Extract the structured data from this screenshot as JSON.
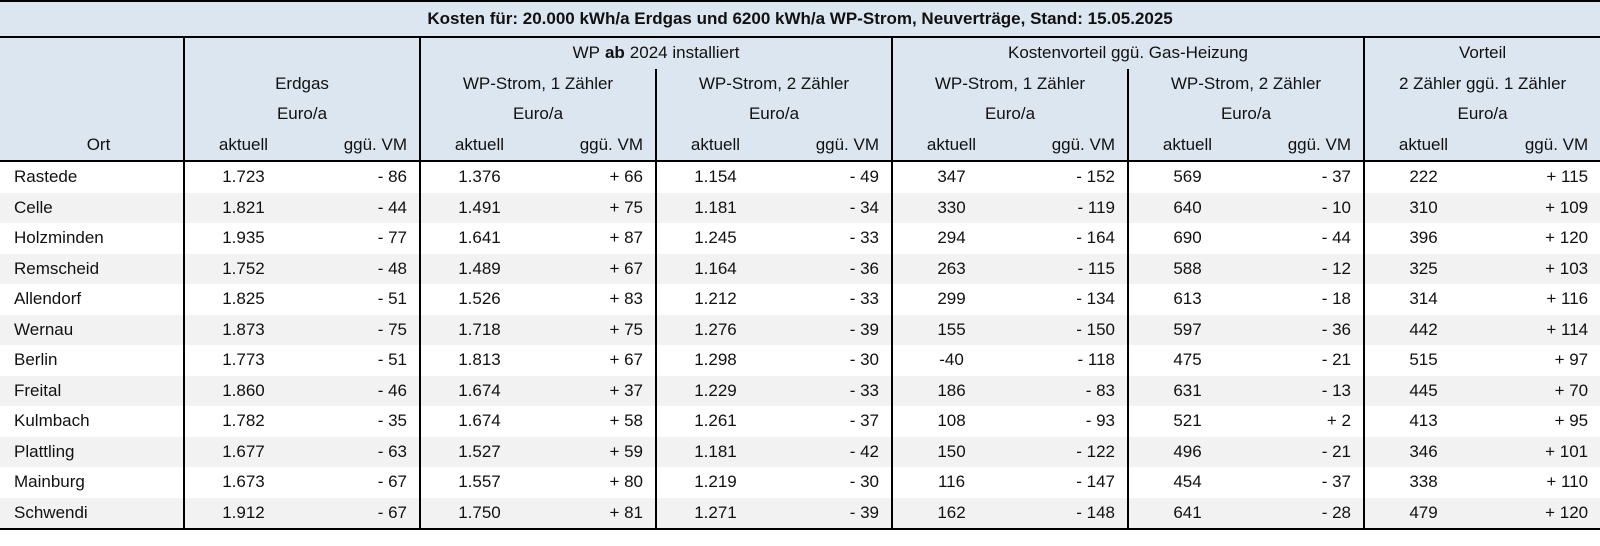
{
  "title": "Kosten für: 20.000 kWh/a Erdgas und 6200 kWh/a WP-Strom, Neuverträge, Stand: 15.05.2025",
  "header": {
    "wp_group": [
      "WP",
      "ab",
      "2024 installiert"
    ],
    "kv_group": "Kostenvorteil ggü. Gas-Heizung",
    "vorteil_group": "Vorteil",
    "subgroups": [
      "Erdgas",
      "WP-Strom, 1 Zähler",
      "WP-Strom, 2 Zähler",
      "WP-Strom, 1 Zähler",
      "WP-Strom, 2 Zähler",
      "2 Zähler ggü. 1 Zähler"
    ],
    "units": [
      "Euro/a",
      "Euro/a",
      "Euro/a",
      "Euro/a",
      "Euro/a",
      "Euro/a"
    ],
    "ort": "Ort",
    "columns": [
      "aktuell",
      "ggü. VM",
      "aktuell",
      "ggü. VM",
      "aktuell",
      "ggü. VM",
      "aktuell",
      "ggü. VM",
      "aktuell",
      "ggü. VM",
      "aktuell",
      "ggü. VM"
    ]
  },
  "rows": [
    {
      "ort": "Rastede",
      "values": [
        "1.723",
        "- 86",
        "1.376",
        "+ 66",
        "1.154",
        "- 49",
        "347",
        "- 152",
        "569",
        "- 37",
        "222",
        "+ 115"
      ]
    },
    {
      "ort": "Celle",
      "values": [
        "1.821",
        "- 44",
        "1.491",
        "+ 75",
        "1.181",
        "- 34",
        "330",
        "- 119",
        "640",
        "- 10",
        "310",
        "+ 109"
      ]
    },
    {
      "ort": "Holzminden",
      "values": [
        "1.935",
        "- 77",
        "1.641",
        "+ 87",
        "1.245",
        "- 33",
        "294",
        "- 164",
        "690",
        "- 44",
        "396",
        "+ 120"
      ]
    },
    {
      "ort": "Remscheid",
      "values": [
        "1.752",
        "- 48",
        "1.489",
        "+ 67",
        "1.164",
        "- 36",
        "263",
        "- 115",
        "588",
        "- 12",
        "325",
        "+ 103"
      ]
    },
    {
      "ort": "Allendorf",
      "values": [
        "1.825",
        "- 51",
        "1.526",
        "+ 83",
        "1.212",
        "- 33",
        "299",
        "- 134",
        "613",
        "- 18",
        "314",
        "+ 116"
      ]
    },
    {
      "ort": "Wernau",
      "values": [
        "1.873",
        "- 75",
        "1.718",
        "+ 75",
        "1.276",
        "- 39",
        "155",
        "- 150",
        "597",
        "- 36",
        "442",
        "+ 114"
      ]
    },
    {
      "ort": "Berlin",
      "values": [
        "1.773",
        "- 51",
        "1.813",
        "+ 67",
        "1.298",
        "- 30",
        "-40",
        "- 118",
        "475",
        "- 21",
        "515",
        "+ 97"
      ]
    },
    {
      "ort": "Freital",
      "values": [
        "1.860",
        "- 46",
        "1.674",
        "+ 37",
        "1.229",
        "- 33",
        "186",
        "- 83",
        "631",
        "- 13",
        "445",
        "+ 70"
      ]
    },
    {
      "ort": "Kulmbach",
      "values": [
        "1.782",
        "- 35",
        "1.674",
        "+ 58",
        "1.261",
        "- 37",
        "108",
        "- 93",
        "521",
        "+ 2",
        "413",
        "+ 95"
      ]
    },
    {
      "ort": "Plattling",
      "values": [
        "1.677",
        "- 63",
        "1.527",
        "+ 59",
        "1.181",
        "- 42",
        "150",
        "- 122",
        "496",
        "- 21",
        "346",
        "+ 101"
      ]
    },
    {
      "ort": "Mainburg",
      "values": [
        "1.673",
        "- 67",
        "1.557",
        "+ 80",
        "1.219",
        "- 30",
        "116",
        "- 147",
        "454",
        "- 37",
        "338",
        "+ 110"
      ]
    },
    {
      "ort": "Schwendi",
      "values": [
        "1.912",
        "- 67",
        "1.750",
        "+ 81",
        "1.271",
        "- 39",
        "162",
        "- 148",
        "641",
        "- 28",
        "479",
        "+ 120"
      ]
    }
  ]
}
